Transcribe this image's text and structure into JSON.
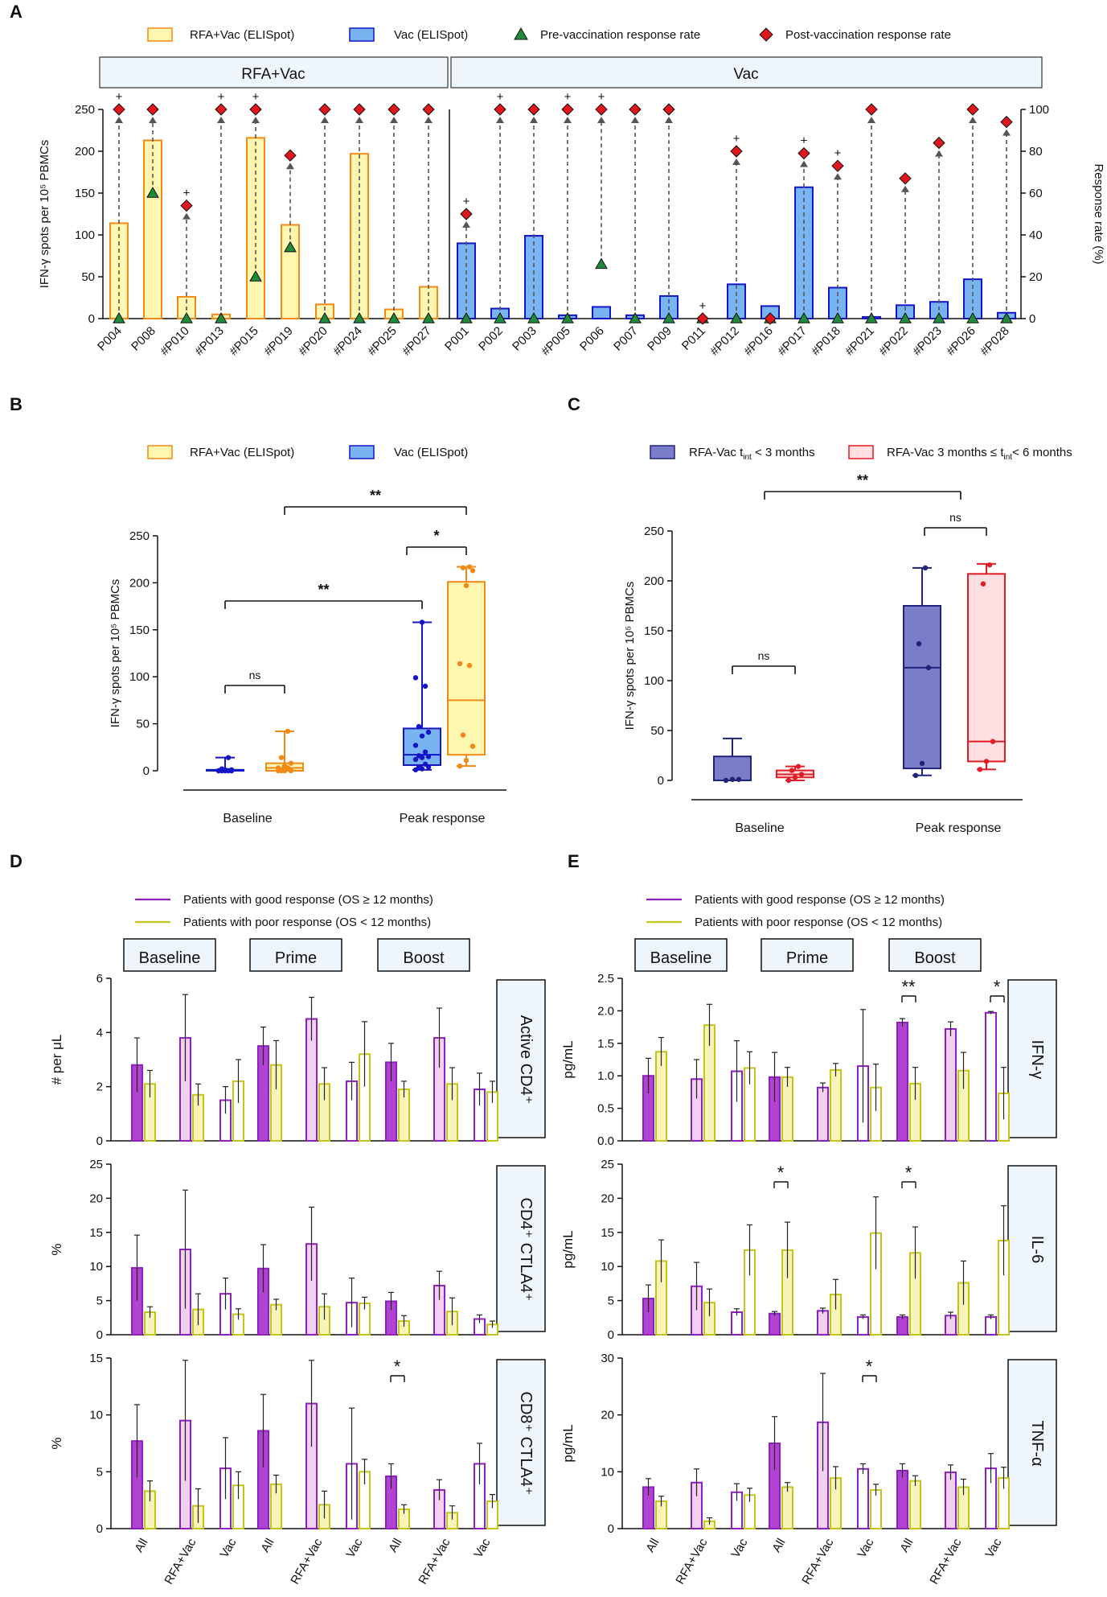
{
  "panel_labels": [
    "A",
    "B",
    "C",
    "D",
    "E"
  ],
  "colors": {
    "rfa_fill": "#fff6b0",
    "rfa_stroke": "#f28a18",
    "vac_fill": "#79b4f2",
    "vac_stroke": "#1515c8",
    "pre_tri": "#1f8a3a",
    "post_dia": "#e0161c",
    "good": "#8f1fc0",
    "good_fill_dark": "#b044d0",
    "good_fill_light": "#f1d0f0",
    "poor": "#c4c41a",
    "poor_fill": "#f6f4b8",
    "c_dark_fill": "#7a7ec8",
    "c_dark_stroke": "#20237a",
    "c_light_fill": "#ffe0e2",
    "c_light_stroke": "#e01c24",
    "header_fill": "#eef6fc"
  },
  "chart_data": [
    {
      "id": "A",
      "type": "bar",
      "legend": [
        "RFA+Vac (ELISpot)",
        "Vac (ELISpot)",
        "Pre-vaccination response rate",
        "Post-vaccination response rate"
      ],
      "group_headers": [
        "RFA+Vac",
        "Vac"
      ],
      "ylabel_left": "IFN-γ spots per 10⁵ PBMCs",
      "ylabel_right": "Response rate (%)",
      "ylim_left": [
        0,
        250
      ],
      "yticks_left": [
        "0",
        "50",
        "100",
        "150",
        "200",
        "250"
      ],
      "ylim_right": [
        0,
        100
      ],
      "yticks_right": [
        "0",
        "20",
        "40",
        "60",
        "80",
        "100"
      ],
      "categories": [
        "P004",
        "P008",
        "#P010",
        "#P013",
        "#P015",
        "#P019",
        "#P020",
        "#P024",
        "#P025",
        "#P027",
        "P001",
        "P002",
        "P003",
        "#P005",
        "P006",
        "P007",
        "P009",
        "P011",
        "#P012",
        "#P016",
        "#P017",
        "#P018",
        "#P021",
        "#P022",
        "#P023",
        "#P026",
        "#P028"
      ],
      "group": [
        "RFA+Vac",
        "RFA+Vac",
        "RFA+Vac",
        "RFA+Vac",
        "RFA+Vac",
        "RFA+Vac",
        "RFA+Vac",
        "RFA+Vac",
        "RFA+Vac",
        "RFA+Vac",
        "Vac",
        "Vac",
        "Vac",
        "Vac",
        "Vac",
        "Vac",
        "Vac",
        "Vac",
        "Vac",
        "Vac",
        "Vac",
        "Vac",
        "Vac",
        "Vac",
        "Vac",
        "Vac",
        "Vac"
      ],
      "values": [
        114,
        213,
        26,
        5,
        216,
        112,
        17,
        197,
        11,
        38,
        90,
        12,
        99,
        4,
        14,
        4,
        27,
        0,
        41,
        15,
        157,
        37,
        2,
        16,
        20,
        47,
        7
      ],
      "pre_rate": [
        0,
        60,
        0,
        0,
        20,
        34,
        0,
        0,
        0,
        0,
        0,
        0,
        0,
        0,
        26,
        0,
        0,
        0,
        0,
        0,
        0,
        0,
        0,
        0,
        0,
        0,
        0
      ],
      "post_rate": [
        100,
        100,
        54,
        100,
        100,
        78,
        100,
        100,
        100,
        100,
        50,
        100,
        100,
        100,
        100,
        100,
        100,
        0,
        80,
        0,
        79,
        73,
        100,
        67,
        84,
        100,
        94
      ],
      "plus_marks": [
        "+",
        "",
        "+",
        "+",
        "+",
        "",
        "",
        "",
        "",
        "",
        "+",
        "+",
        "",
        "+",
        "+",
        "",
        "",
        "+",
        "+",
        "",
        "+",
        "+",
        "",
        "",
        "",
        "",
        ""
      ]
    },
    {
      "id": "B",
      "type": "box",
      "legend": [
        "RFA+Vac (ELISpot)",
        "Vac (ELISpot)"
      ],
      "ylabel": "IFN-γ spots per 10⁵ PBMCs",
      "ylim": [
        0,
        250
      ],
      "yticks": [
        "0",
        "50",
        "100",
        "150",
        "200",
        "250"
      ],
      "groups": [
        "Baseline",
        "Peak response"
      ],
      "boxes": [
        {
          "series": "Vac",
          "group": "Baseline",
          "min": 0,
          "q1": 0,
          "median": 0,
          "q3": 1,
          "max": 14,
          "points": [
            0,
            0,
            0,
            0,
            0,
            0,
            0,
            0,
            0,
            0,
            0,
            1,
            1,
            2,
            14
          ]
        },
        {
          "series": "RFA+Vac",
          "group": "Baseline",
          "min": 0,
          "q1": 0,
          "median": 3,
          "q3": 8,
          "max": 42,
          "points": [
            0,
            0,
            0,
            0,
            3,
            3,
            5,
            8,
            14,
            42
          ]
        },
        {
          "series": "Vac",
          "group": "Peak response",
          "min": 1,
          "q1": 6,
          "median": 17,
          "q3": 45,
          "max": 158,
          "points": [
            1,
            2,
            4,
            4,
            7,
            12,
            14,
            15,
            16,
            20,
            27,
            37,
            41,
            47,
            90,
            99,
            158
          ]
        },
        {
          "series": "RFA+Vac",
          "group": "Peak response",
          "min": 5,
          "q1": 17,
          "median": 75,
          "q3": 201,
          "max": 217,
          "points": [
            5,
            11,
            26,
            38,
            112,
            114,
            197,
            213,
            216,
            217
          ]
        }
      ],
      "significance": [
        {
          "pair": "Baseline Vac vs RFA+Vac",
          "label": "ns"
        },
        {
          "pair": "Baseline vs Peak (Vac)",
          "label": "**"
        },
        {
          "pair": "Peak Vac vs RFA+Vac",
          "label": "*"
        },
        {
          "pair": "Baseline vs Peak (RFA+Vac)",
          "label": "**"
        }
      ]
    },
    {
      "id": "C",
      "type": "box",
      "legend": [
        "RFA-Vac t",
        "int",
        " < 3 months",
        "RFA-Vac 3 months ≤ t",
        "int",
        "< 6 months"
      ],
      "ylabel": "IFN-γ spots per 10⁵ PBMCs",
      "ylim": [
        0,
        250
      ],
      "yticks": [
        "0",
        "50",
        "100",
        "150",
        "200",
        "250"
      ],
      "groups": [
        "Baseline",
        "Peak response"
      ],
      "boxes": [
        {
          "series": "<3",
          "group": "Baseline",
          "min": 0,
          "q1": 0,
          "median": 0,
          "q3": 24,
          "max": 42,
          "points": [
            0,
            1,
            1
          ]
        },
        {
          "series": "3-6",
          "group": "Baseline",
          "min": 0,
          "q1": 3,
          "median": 6,
          "q3": 10,
          "max": 14,
          "points": [
            0,
            3,
            6,
            10,
            14
          ]
        },
        {
          "series": "<3",
          "group": "Peak response",
          "min": 5,
          "q1": 12,
          "median": 113,
          "q3": 175,
          "max": 213,
          "points": [
            5,
            17,
            113,
            137,
            213
          ]
        },
        {
          "series": "3-6",
          "group": "Peak response",
          "min": 11,
          "q1": 19,
          "median": 39,
          "q3": 207,
          "max": 217,
          "points": [
            11,
            19,
            39,
            197,
            216
          ]
        }
      ],
      "significance": [
        {
          "pair": "Baseline",
          "label": "ns"
        },
        {
          "pair": "Peak response",
          "label": "ns"
        },
        {
          "pair": "Baseline vs Peak",
          "label": "**"
        }
      ]
    },
    {
      "id": "D",
      "type": "bar",
      "legend": [
        "Patients  with  good  response  (OS  ≥  12  months)",
        "Patients  with  poor  response  (OS  <  12  months)"
      ],
      "timepoints": [
        "Baseline",
        "Prime",
        "Boost"
      ],
      "categories": [
        "All",
        "RFA+Vac",
        "Vac"
      ],
      "rows": [
        {
          "name": "Active CD4⁺",
          "ylabel": "# per μL",
          "ylim": [
            0,
            6
          ],
          "yticks": [
            "0",
            "2",
            "4",
            "6"
          ],
          "good": [
            [
              2.8,
              3.8,
              1.5
            ],
            [
              3.5,
              4.5,
              2.2
            ],
            [
              2.9,
              3.8,
              1.9
            ]
          ],
          "good_err": [
            [
              1.0,
              1.6,
              0.5
            ],
            [
              0.7,
              0.8,
              0.7
            ],
            [
              0.7,
              1.1,
              0.6
            ]
          ],
          "poor": [
            [
              2.1,
              1.7,
              2.2
            ],
            [
              2.8,
              2.1,
              3.2
            ],
            [
              1.9,
              2.1,
              1.8
            ]
          ],
          "poor_err": [
            [
              0.5,
              0.4,
              0.8
            ],
            [
              0.9,
              0.6,
              1.2
            ],
            [
              0.3,
              0.6,
              0.4
            ]
          ],
          "sig": []
        },
        {
          "name": "CD4⁺ CTLA4⁺",
          "ylabel": "%",
          "ylim": [
            0,
            25
          ],
          "yticks": [
            "0",
            "5",
            "10",
            "15",
            "20",
            "25"
          ],
          "good": [
            [
              9.8,
              12.5,
              6.0
            ],
            [
              9.7,
              13.3,
              4.7
            ],
            [
              4.9,
              7.2,
              2.3
            ]
          ],
          "good_err": [
            [
              4.8,
              8.7,
              2.3
            ],
            [
              3.5,
              5.4,
              3.6
            ],
            [
              1.3,
              2.1,
              0.6
            ]
          ],
          "poor": [
            [
              3.3,
              3.7,
              3.0
            ],
            [
              4.4,
              4.1,
              4.6
            ],
            [
              2.0,
              3.4,
              1.5
            ]
          ],
          "poor_err": [
            [
              0.8,
              2.3,
              0.8
            ],
            [
              0.8,
              1.9,
              0.9
            ],
            [
              0.8,
              2.0,
              0.5
            ]
          ],
          "sig": []
        },
        {
          "name": "CD8⁺ CTLA4⁺",
          "ylabel": "%",
          "ylim": [
            0,
            15
          ],
          "yticks": [
            "0",
            "5",
            "10",
            "15"
          ],
          "good": [
            [
              7.7,
              9.5,
              5.3
            ],
            [
              8.6,
              11.0,
              5.7
            ],
            [
              4.6,
              3.4,
              5.7
            ]
          ],
          "good_err": [
            [
              3.2,
              5.3,
              2.7
            ],
            [
              3.2,
              3.8,
              4.9
            ],
            [
              1.1,
              0.9,
              1.8
            ]
          ],
          "poor": [
            [
              3.3,
              2.0,
              3.8
            ],
            [
              3.9,
              2.1,
              5.0
            ],
            [
              1.7,
              1.4,
              2.4
            ]
          ],
          "poor_err": [
            [
              0.9,
              1.5,
              1.2
            ],
            [
              0.8,
              1.2,
              1.1
            ],
            [
              0.4,
              0.6,
              0.6
            ]
          ],
          "sig": [
            {
              "timepoint": 2,
              "category": 0,
              "label": "*"
            }
          ]
        }
      ]
    },
    {
      "id": "E",
      "type": "bar",
      "legend": [
        "Patients  with  good  response  (OS  ≥  12  months)",
        "Patients  with  poor  response  (OS  <  12  months)"
      ],
      "timepoints": [
        "Baseline",
        "Prime",
        "Boost"
      ],
      "categories": [
        "All",
        "RFA+Vac",
        "Vac"
      ],
      "rows": [
        {
          "name": "IFN-γ",
          "ylabel": "pg/mL",
          "ylim": [
            0,
            2.5
          ],
          "yticks": [
            "0.0",
            "0.5",
            "1.0",
            "1.5",
            "2.0",
            "2.5"
          ],
          "good": [
            [
              1.0,
              0.95,
              1.07
            ],
            [
              0.98,
              0.82,
              1.15
            ],
            [
              1.82,
              1.72,
              1.97
            ]
          ],
          "good_err": [
            [
              0.27,
              0.3,
              0.47
            ],
            [
              0.38,
              0.07,
              0.87
            ],
            [
              0.06,
              0.11,
              0.02
            ]
          ],
          "poor": [
            [
              1.37,
              1.78,
              1.12
            ],
            [
              0.98,
              1.09,
              0.82
            ],
            [
              0.88,
              1.08,
              0.73
            ]
          ],
          "poor_err": [
            [
              0.22,
              0.32,
              0.25
            ],
            [
              0.15,
              0.1,
              0.36
            ],
            [
              0.25,
              0.28,
              0.4
            ]
          ],
          "sig": [
            {
              "timepoint": 2,
              "category": 0,
              "label": "**"
            },
            {
              "timepoint": 2,
              "category": 2,
              "label": "*"
            }
          ]
        },
        {
          "name": "IL-6",
          "ylabel": "pg/mL",
          "ylim": [
            0,
            25
          ],
          "yticks": [
            "0",
            "5",
            "10",
            "15",
            "20",
            "25"
          ],
          "good": [
            [
              5.3,
              7.1,
              3.3
            ],
            [
              3.1,
              3.5,
              2.6
            ],
            [
              2.6,
              2.8,
              2.6
            ]
          ],
          "good_err": [
            [
              2.0,
              3.5,
              0.5
            ],
            [
              0.3,
              0.4,
              0.3
            ],
            [
              0.3,
              0.5,
              0.3
            ]
          ],
          "poor": [
            [
              10.8,
              4.7,
              12.4
            ],
            [
              12.4,
              5.9,
              14.9
            ],
            [
              12.0,
              7.6,
              13.8
            ]
          ],
          "poor_err": [
            [
              3.1,
              2.0,
              3.7
            ],
            [
              4.1,
              2.2,
              5.3
            ],
            [
              3.8,
              3.2,
              5.1
            ]
          ],
          "sig": [
            {
              "timepoint": 1,
              "category": 0,
              "label": "*"
            },
            {
              "timepoint": 2,
              "category": 0,
              "label": "*"
            }
          ]
        },
        {
          "name": "TNF-α",
          "ylabel": "pg/mL",
          "ylim": [
            0,
            30
          ],
          "yticks": [
            "0",
            "10",
            "20",
            "30"
          ],
          "good": [
            [
              7.3,
              8.1,
              6.4
            ],
            [
              15.0,
              18.7,
              10.5
            ],
            [
              10.2,
              9.9,
              10.6
            ]
          ],
          "good_err": [
            [
              1.5,
              2.4,
              1.5
            ],
            [
              4.7,
              8.6,
              0.9
            ],
            [
              1.2,
              1.3,
              2.6
            ]
          ],
          "poor": [
            [
              4.8,
              1.3,
              5.9
            ],
            [
              7.3,
              8.9,
              6.8
            ],
            [
              8.4,
              7.3,
              8.9
            ]
          ],
          "poor_err": [
            [
              0.9,
              0.6,
              1.2
            ],
            [
              0.8,
              2.0,
              1.0
            ],
            [
              0.9,
              1.4,
              1.9
            ]
          ],
          "sig": [
            {
              "timepoint": 1,
              "category": 2,
              "label": "*"
            }
          ]
        }
      ]
    }
  ],
  "chart_c_legend_parts": {
    "a_prefix": "RFA-Vac t",
    "a_sub": "int",
    "a_suffix": " < 3 months",
    "b_prefix": "RFA-Vac 3 months ≤ t",
    "b_sub": "int",
    "b_suffix": "< 6 months"
  }
}
